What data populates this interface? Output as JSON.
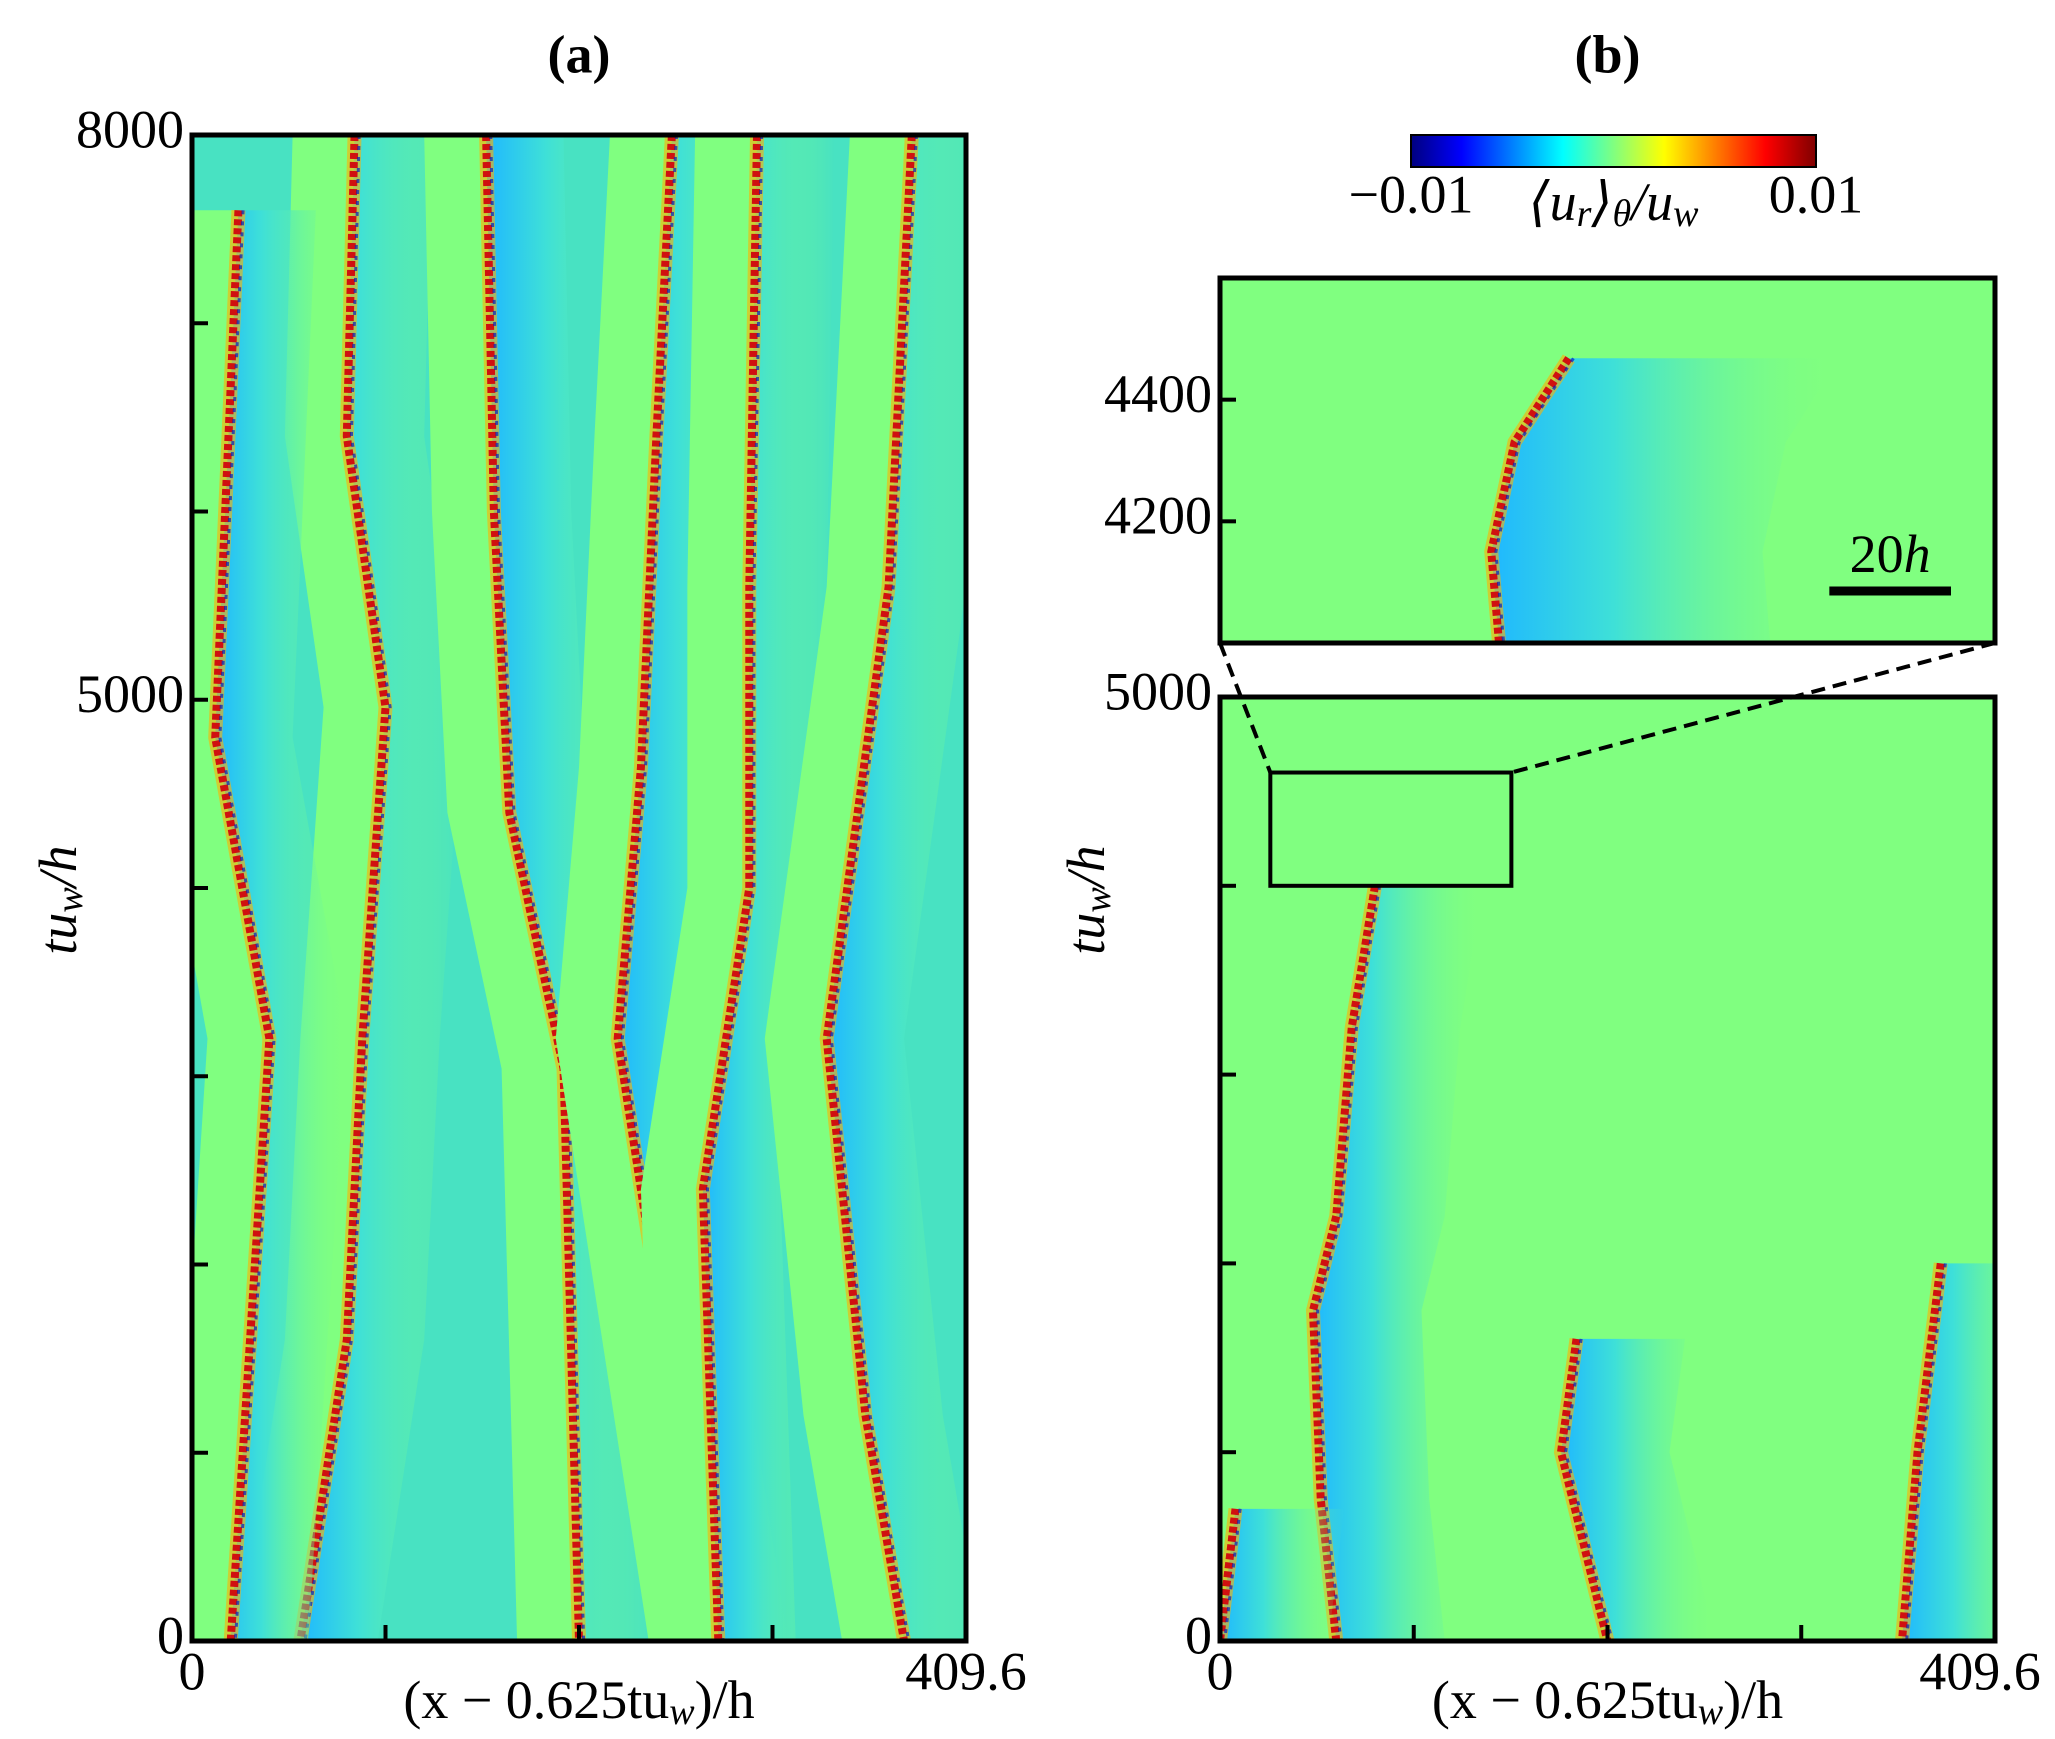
{
  "chart_data": [
    {
      "type": "heatmap",
      "title": "(a)",
      "xlim": [
        0,
        409.6
      ],
      "ylim": [
        0,
        8000
      ],
      "xticks": [
        0,
        409.6
      ],
      "xtick_marks": [
        102.4,
        204.8,
        307.2
      ],
      "yticks": [
        0,
        5000,
        8000
      ],
      "ytick_marks": [
        1000,
        2000,
        3000,
        4000,
        6000,
        7000
      ],
      "xlabel": [
        "(x − 0.625tu",
        "w",
        ")/h"
      ],
      "ylabel": [
        "tu",
        "w",
        "/h"
      ]
    },
    {
      "type": "heatmap",
      "title": "(b)",
      "xlim": [
        0,
        409.6
      ],
      "ylim": [
        0,
        5000
      ],
      "xticks": [
        0,
        409.6
      ],
      "xtick_marks": [
        102.4,
        204.8,
        307.2
      ],
      "yticks": [
        0,
        5000
      ],
      "ytick_marks": [
        1000,
        2000,
        3000,
        4000
      ],
      "xlabel": [
        "(x − 0.625tu",
        "w",
        ")/h"
      ],
      "ylabel": [
        "tu",
        "w",
        "/h"
      ],
      "colormap": "jet",
      "colorbar": {
        "lim": [
          -0.01,
          0.01
        ],
        "ticks": [
          {
            "value": -0.01,
            "label": "−0.01"
          },
          0.01
        ],
        "label": [
          "⟨u",
          "r",
          "⟩",
          "θ",
          "/u",
          "w"
        ]
      },
      "inset": {
        "xlim": [
          26.6,
          154
        ],
        "ylim": [
          4000,
          4600
        ],
        "yticks": [
          4200,
          4400
        ],
        "scale_bar": {
          "length": 20,
          "label": [
            "20",
            "h"
          ]
        }
      }
    }
  ]
}
